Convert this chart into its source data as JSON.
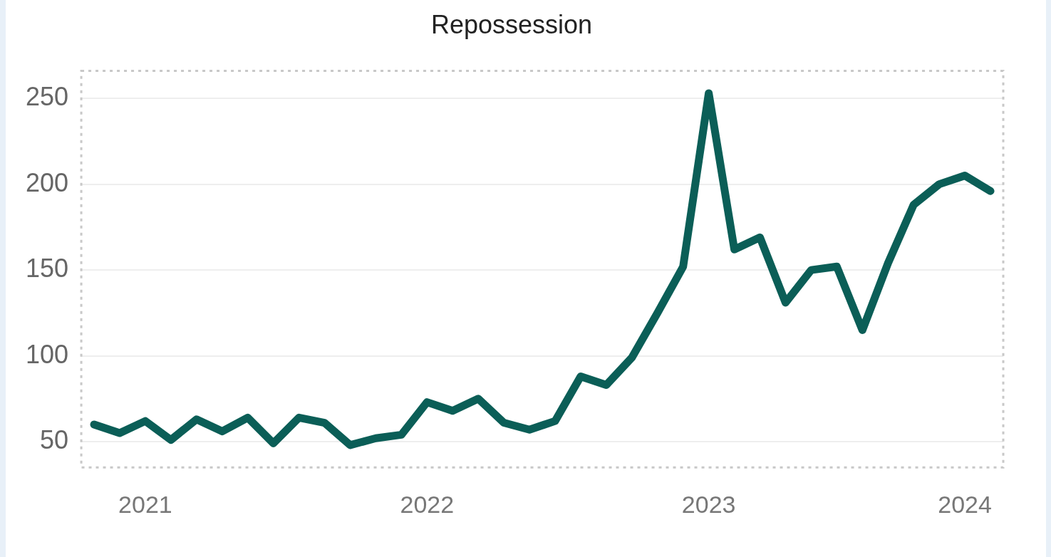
{
  "chart_data": {
    "type": "line",
    "title": "Repossession",
    "categories": [
      null,
      null,
      "2021",
      null,
      null,
      null,
      null,
      null,
      null,
      null,
      null,
      null,
      null,
      "2022",
      null,
      null,
      null,
      null,
      null,
      null,
      null,
      null,
      null,
      null,
      "2023",
      null,
      null,
      null,
      null,
      null,
      null,
      null,
      null,
      null,
      "2024",
      null
    ],
    "series": [
      {
        "color": "#0b5e57",
        "values": [
          60,
          55,
          62,
          51,
          63,
          56,
          64,
          49,
          64,
          61,
          48,
          52,
          54,
          73,
          68,
          75,
          61,
          57,
          62,
          88,
          83,
          99,
          125,
          152,
          253,
          162,
          169,
          131,
          150,
          152,
          115,
          154,
          188,
          200,
          205,
          196
        ]
      }
    ],
    "ylim": [
      35,
      266
    ],
    "yticks": [
      50,
      100,
      150,
      200,
      250
    ],
    "grid": "y",
    "legend": false,
    "marker": "none",
    "line_style": "solid"
  }
}
